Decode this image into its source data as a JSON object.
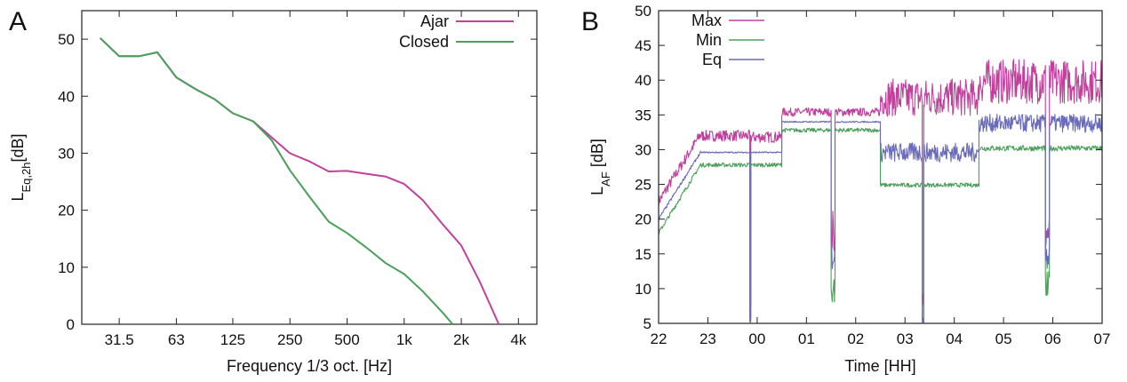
{
  "panels": {
    "a_letter": "A",
    "b_letter": "B"
  },
  "chart_data": [
    {
      "type": "line",
      "panel": "A",
      "xlabel": "Frequency 1/3 oct. [Hz]",
      "ylabel_main": "L",
      "ylabel_sub": "Eq,2h",
      "ylabel_unit": "[dB]",
      "x_scale": "log",
      "xlim": [
        20,
        5000
      ],
      "ylim": [
        0,
        55
      ],
      "xticks": [
        {
          "value": 31.5,
          "label": "31.5"
        },
        {
          "value": 63,
          "label": "63"
        },
        {
          "value": 125,
          "label": "125"
        },
        {
          "value": 250,
          "label": "250"
        },
        {
          "value": 500,
          "label": "500"
        },
        {
          "value": 1000,
          "label": "1k"
        },
        {
          "value": 2000,
          "label": "2k"
        },
        {
          "value": 4000,
          "label": "4k"
        }
      ],
      "yticks": [
        0,
        10,
        20,
        30,
        40,
        50
      ],
      "legend_position": "top-right",
      "series": [
        {
          "name": "Ajar",
          "color": "#c0409c",
          "x": [
            25,
            31.5,
            40,
            50,
            63,
            80,
            100,
            125,
            160,
            200,
            250,
            315,
            400,
            500,
            630,
            800,
            1000,
            1250,
            1600,
            2000,
            2500,
            3150
          ],
          "y": [
            50.2,
            47.0,
            47.0,
            47.7,
            43.3,
            41.2,
            39.5,
            37.0,
            35.6,
            32.8,
            30.0,
            28.6,
            26.8,
            26.9,
            26.4,
            25.9,
            24.6,
            21.8,
            17.5,
            13.8,
            7.5,
            0
          ]
        },
        {
          "name": "Closed",
          "color": "#4aa05a",
          "x": [
            25,
            31.5,
            40,
            50,
            63,
            80,
            100,
            125,
            160,
            200,
            250,
            315,
            400,
            500,
            630,
            800,
            1000,
            1250,
            1600,
            1800
          ],
          "y": [
            50.2,
            47.0,
            47.0,
            47.7,
            43.3,
            41.2,
            39.5,
            37.0,
            35.6,
            32.3,
            27.0,
            22.5,
            18.0,
            16.0,
            13.5,
            10.7,
            8.8,
            5.8,
            2.0,
            0
          ]
        }
      ]
    },
    {
      "type": "line",
      "panel": "B",
      "xlabel": "Time [HH]",
      "ylabel_main": "L",
      "ylabel_sub": "AF",
      "ylabel_unit": "[dB]",
      "xlim": [
        0,
        9
      ],
      "ylim": [
        5,
        50
      ],
      "xticks": [
        "22",
        "23",
        "00",
        "01",
        "02",
        "03",
        "04",
        "05",
        "06",
        "07"
      ],
      "yticks": [
        5,
        10,
        15,
        20,
        25,
        30,
        35,
        40,
        45,
        50
      ],
      "legend_position": "top-left",
      "series": [
        {
          "name": "Max",
          "color": "#c0409c",
          "segments": [
            {
              "start": 0,
              "end": 0.85,
              "from": 22.5,
              "to": 32.2,
              "jitter": 0.8
            },
            {
              "start": 0.85,
              "end": 1.85,
              "level": 32.0,
              "jitter": 0.8
            },
            {
              "start": 1.85,
              "end": 1.87,
              "level": 8.5,
              "jitter": 1.5
            },
            {
              "start": 1.87,
              "end": 2.5,
              "level": 31.8,
              "jitter": 0.8
            },
            {
              "start": 2.5,
              "end": 3.5,
              "level": 35.4,
              "jitter": 0.6
            },
            {
              "start": 3.5,
              "end": 3.58,
              "level": 18.0,
              "jitter": 3.5
            },
            {
              "start": 3.58,
              "end": 4.5,
              "level": 35.4,
              "jitter": 0.6
            },
            {
              "start": 4.5,
              "end": 5.35,
              "level": 37.5,
              "jitter": 2.7
            },
            {
              "start": 5.35,
              "end": 5.38,
              "level": 8.5,
              "jitter": 1.5
            },
            {
              "start": 5.38,
              "end": 6.5,
              "level": 37.5,
              "jitter": 2.7
            },
            {
              "start": 6.5,
              "end": 7.85,
              "level": 39.8,
              "jitter": 3.2
            },
            {
              "start": 7.85,
              "end": 7.93,
              "level": 18.0,
              "jitter": 3.5
            },
            {
              "start": 7.93,
              "end": 9.0,
              "level": 39.8,
              "jitter": 3.2
            }
          ]
        },
        {
          "name": "Min",
          "color": "#4aa05a",
          "segments": [
            {
              "start": 0,
              "end": 0.85,
              "from": 18.0,
              "to": 27.8,
              "jitter": 0.3
            },
            {
              "start": 0.85,
              "end": 1.85,
              "level": 27.8,
              "jitter": 0.3
            },
            {
              "start": 1.85,
              "end": 1.87,
              "level": 5.2,
              "jitter": 0.2
            },
            {
              "start": 1.87,
              "end": 2.5,
              "level": 27.8,
              "jitter": 0.3
            },
            {
              "start": 2.5,
              "end": 3.5,
              "level": 32.8,
              "jitter": 0.3
            },
            {
              "start": 3.5,
              "end": 3.58,
              "level": 10.0,
              "jitter": 2.5
            },
            {
              "start": 3.58,
              "end": 4.5,
              "level": 32.8,
              "jitter": 0.3
            },
            {
              "start": 4.5,
              "end": 5.35,
              "level": 24.9,
              "jitter": 0.3
            },
            {
              "start": 5.35,
              "end": 5.38,
              "level": 5.2,
              "jitter": 0.2
            },
            {
              "start": 5.38,
              "end": 6.5,
              "level": 24.9,
              "jitter": 0.3
            },
            {
              "start": 6.5,
              "end": 7.85,
              "level": 30.2,
              "jitter": 0.4
            },
            {
              "start": 7.85,
              "end": 7.93,
              "level": 10.0,
              "jitter": 2.5
            },
            {
              "start": 7.93,
              "end": 9.0,
              "level": 30.2,
              "jitter": 0.4
            }
          ]
        },
        {
          "name": "Eq",
          "color": "#6a6cba",
          "segments": [
            {
              "start": 0,
              "end": 0.85,
              "from": 20.0,
              "to": 29.6,
              "jitter": 0.2
            },
            {
              "start": 0.85,
              "end": 1.85,
              "level": 29.6,
              "jitter": 0.1
            },
            {
              "start": 1.85,
              "end": 1.87,
              "level": 5.5,
              "jitter": 0.5
            },
            {
              "start": 1.87,
              "end": 2.5,
              "level": 29.6,
              "jitter": 0.1
            },
            {
              "start": 2.5,
              "end": 3.5,
              "level": 34.0,
              "jitter": 0.1
            },
            {
              "start": 3.5,
              "end": 3.58,
              "level": 15.0,
              "jitter": 2.5
            },
            {
              "start": 3.58,
              "end": 4.5,
              "level": 34.0,
              "jitter": 0.1
            },
            {
              "start": 4.5,
              "end": 5.35,
              "level": 29.6,
              "jitter": 1.4
            },
            {
              "start": 5.35,
              "end": 5.38,
              "level": 5.5,
              "jitter": 0.5
            },
            {
              "start": 5.38,
              "end": 6.5,
              "level": 29.6,
              "jitter": 1.4
            },
            {
              "start": 6.5,
              "end": 7.85,
              "level": 33.8,
              "jitter": 1.3
            },
            {
              "start": 7.85,
              "end": 7.93,
              "level": 15.0,
              "jitter": 2.5
            },
            {
              "start": 7.93,
              "end": 9.0,
              "level": 33.8,
              "jitter": 1.3
            }
          ]
        }
      ]
    }
  ]
}
